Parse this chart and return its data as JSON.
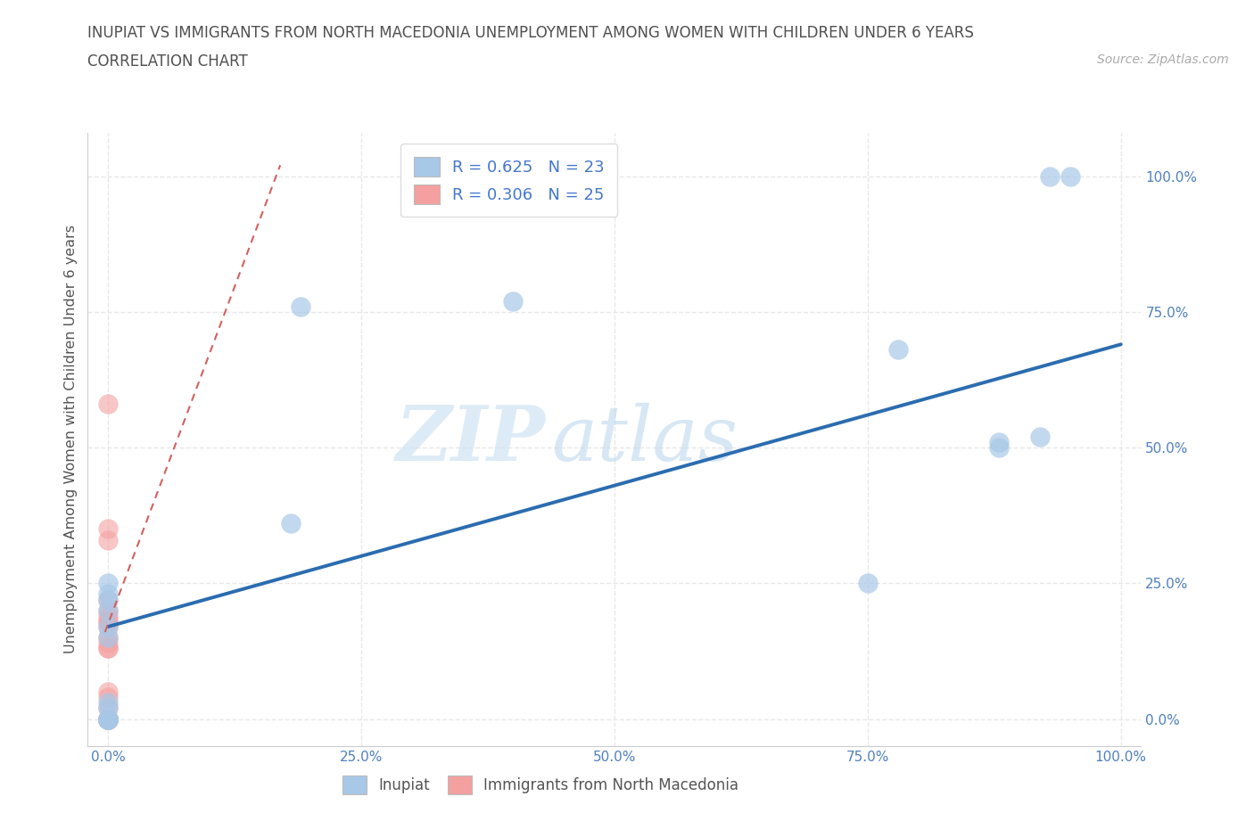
{
  "title_line1": "INUPIAT VS IMMIGRANTS FROM NORTH MACEDONIA UNEMPLOYMENT AMONG WOMEN WITH CHILDREN UNDER 6 YEARS",
  "title_line2": "CORRELATION CHART",
  "source": "Source: ZipAtlas.com",
  "ylabel": "Unemployment Among Women with Children Under 6 years",
  "xlim": [
    -0.02,
    1.02
  ],
  "ylim": [
    -0.05,
    1.08
  ],
  "xticks": [
    0.0,
    0.25,
    0.5,
    0.75,
    1.0
  ],
  "yticks": [
    0.0,
    0.25,
    0.5,
    0.75,
    1.0
  ],
  "xticklabels": [
    "0.0%",
    "25.0%",
    "50.0%",
    "75.0%",
    "100.0%"
  ],
  "yticklabels": [
    "0.0%",
    "25.0%",
    "50.0%",
    "75.0%",
    "100.0%"
  ],
  "inupiat_color": "#a8c8e8",
  "macedonian_color": "#f4a0a0",
  "blue_line_color": "#2b6cb0",
  "pink_line_color": "#d46060",
  "legend_R1": "R = 0.625",
  "legend_N1": "N = 23",
  "legend_R2": "R = 0.306",
  "legend_N2": "N = 25",
  "inupiat_points_x": [
    0.0,
    0.0,
    0.0,
    0.0,
    0.0,
    0.0,
    0.0,
    0.0,
    0.0,
    0.0,
    0.0,
    0.0,
    0.0,
    0.18,
    0.19,
    0.4,
    0.75,
    0.78,
    0.88,
    0.88,
    0.92,
    0.93,
    0.95
  ],
  "inupiat_points_y": [
    0.0,
    0.0,
    0.0,
    0.02,
    0.03,
    0.15,
    0.17,
    0.2,
    0.22,
    0.23,
    0.25,
    0.0,
    0.0,
    0.36,
    0.76,
    0.77,
    0.25,
    0.68,
    0.5,
    0.51,
    0.52,
    1.0,
    1.0
  ],
  "macedonian_points_x": [
    0.0,
    0.0,
    0.0,
    0.0,
    0.0,
    0.0,
    0.0,
    0.0,
    0.0,
    0.0,
    0.0,
    0.0,
    0.0,
    0.0,
    0.0,
    0.0,
    0.0,
    0.0,
    0.0,
    0.0,
    0.0,
    0.0,
    0.0,
    0.0,
    0.0
  ],
  "macedonian_points_y": [
    0.0,
    0.0,
    0.0,
    0.0,
    0.0,
    0.0,
    0.0,
    0.0,
    0.0,
    0.02,
    0.04,
    0.05,
    0.13,
    0.17,
    0.18,
    0.18,
    0.19,
    0.2,
    0.22,
    0.33,
    0.35,
    0.58,
    0.13,
    0.14,
    0.15
  ],
  "blue_trendline_x": [
    0.0,
    1.0
  ],
  "blue_trendline_y": [
    0.17,
    0.69
  ],
  "pink_trendline_x": [
    -0.003,
    0.17
  ],
  "pink_trendline_y": [
    0.16,
    1.02
  ],
  "watermark_zip": "ZIP",
  "watermark_atlas": "atlas",
  "grid_color": "#e8e8e8",
  "grid_style": "--",
  "background_color": "#ffffff",
  "title_color": "#505050",
  "tick_color": "#5080c0"
}
